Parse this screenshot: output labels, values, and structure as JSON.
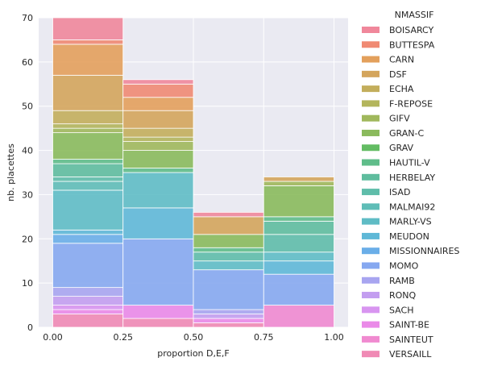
{
  "chart_data": {
    "type": "bar",
    "subtype": "stacked-histogram",
    "xlabel": "proportion D,E,F",
    "ylabel": "nb. placettes",
    "xlim": [
      -0.05,
      1.05
    ],
    "ylim": [
      0,
      70
    ],
    "x_ticks": [
      "0.00",
      "0.25",
      "0.50",
      "0.75",
      "1.00"
    ],
    "y_ticks": [
      "0",
      "10",
      "20",
      "30",
      "40",
      "50",
      "60",
      "70"
    ],
    "grid": true,
    "legend_title": "NMASSIF",
    "legend_position": "right",
    "bins": [
      {
        "x0": 0.0,
        "x1": 0.25
      },
      {
        "x0": 0.25,
        "x1": 0.5
      },
      {
        "x0": 0.5,
        "x1": 0.75
      },
      {
        "x0": 0.75,
        "x1": 1.0
      }
    ],
    "series": [
      {
        "name": "BOISARCY",
        "color": "#f0879b",
        "values": [
          5,
          1,
          1,
          0
        ]
      },
      {
        "name": "BUTTESPA",
        "color": "#f08a73",
        "values": [
          1,
          3,
          0,
          0
        ]
      },
      {
        "name": "CARN",
        "color": "#e3a05c",
        "values": [
          7,
          3,
          0,
          0
        ]
      },
      {
        "name": "DSF",
        "color": "#d4a55c",
        "values": [
          8,
          4,
          4,
          1
        ]
      },
      {
        "name": "ECHA",
        "color": "#c3ae5c",
        "values": [
          3,
          2,
          0,
          0
        ]
      },
      {
        "name": "F-REPOSE",
        "color": "#b3b55c",
        "values": [
          1,
          1,
          0,
          0
        ]
      },
      {
        "name": "GIFV",
        "color": "#a0b85c",
        "values": [
          1,
          2,
          0,
          1
        ]
      },
      {
        "name": "GRAN-C",
        "color": "#8aba5c",
        "values": [
          6,
          4,
          3,
          7
        ]
      },
      {
        "name": "GRAV",
        "color": "#63bc63",
        "values": [
          0,
          0,
          0,
          0
        ]
      },
      {
        "name": "HAUTIL-V",
        "color": "#5fbd8a",
        "values": [
          1,
          1,
          1,
          1
        ]
      },
      {
        "name": "HERBELAY",
        "color": "#5fbd9e",
        "values": [
          3,
          0,
          0,
          3
        ]
      },
      {
        "name": "ISAD",
        "color": "#5fbdaa",
        "values": [
          1,
          0,
          2,
          4
        ]
      },
      {
        "name": "MALMAI92",
        "color": "#5fbdb7",
        "values": [
          2,
          0,
          0,
          0
        ]
      },
      {
        "name": "MARLY-VS",
        "color": "#5fbcc5",
        "values": [
          9,
          8,
          2,
          2
        ]
      },
      {
        "name": "MEUDON",
        "color": "#5fb8d7",
        "values": [
          1,
          7,
          0,
          3
        ]
      },
      {
        "name": "MISSIONNAIRES",
        "color": "#6aaee8",
        "values": [
          2,
          0,
          0,
          0
        ]
      },
      {
        "name": "MOMO",
        "color": "#86a8f0",
        "values": [
          10,
          15,
          9,
          7
        ]
      },
      {
        "name": "RAMB",
        "color": "#a8a5f0",
        "values": [
          2,
          0,
          1,
          0
        ]
      },
      {
        "name": "RONQ",
        "color": "#c39ef0",
        "values": [
          2,
          0,
          1,
          0
        ]
      },
      {
        "name": "SACH",
        "color": "#d895f0",
        "values": [
          1,
          0,
          0,
          0
        ]
      },
      {
        "name": "SAINT-BE",
        "color": "#ea8ae8",
        "values": [
          1,
          3,
          1,
          0
        ]
      },
      {
        "name": "SAINTEUT",
        "color": "#f08ad0",
        "values": [
          0,
          0,
          0,
          5
        ]
      },
      {
        "name": "VERSAILL",
        "color": "#f08ab5",
        "values": [
          3,
          2,
          1,
          0
        ]
      }
    ]
  }
}
